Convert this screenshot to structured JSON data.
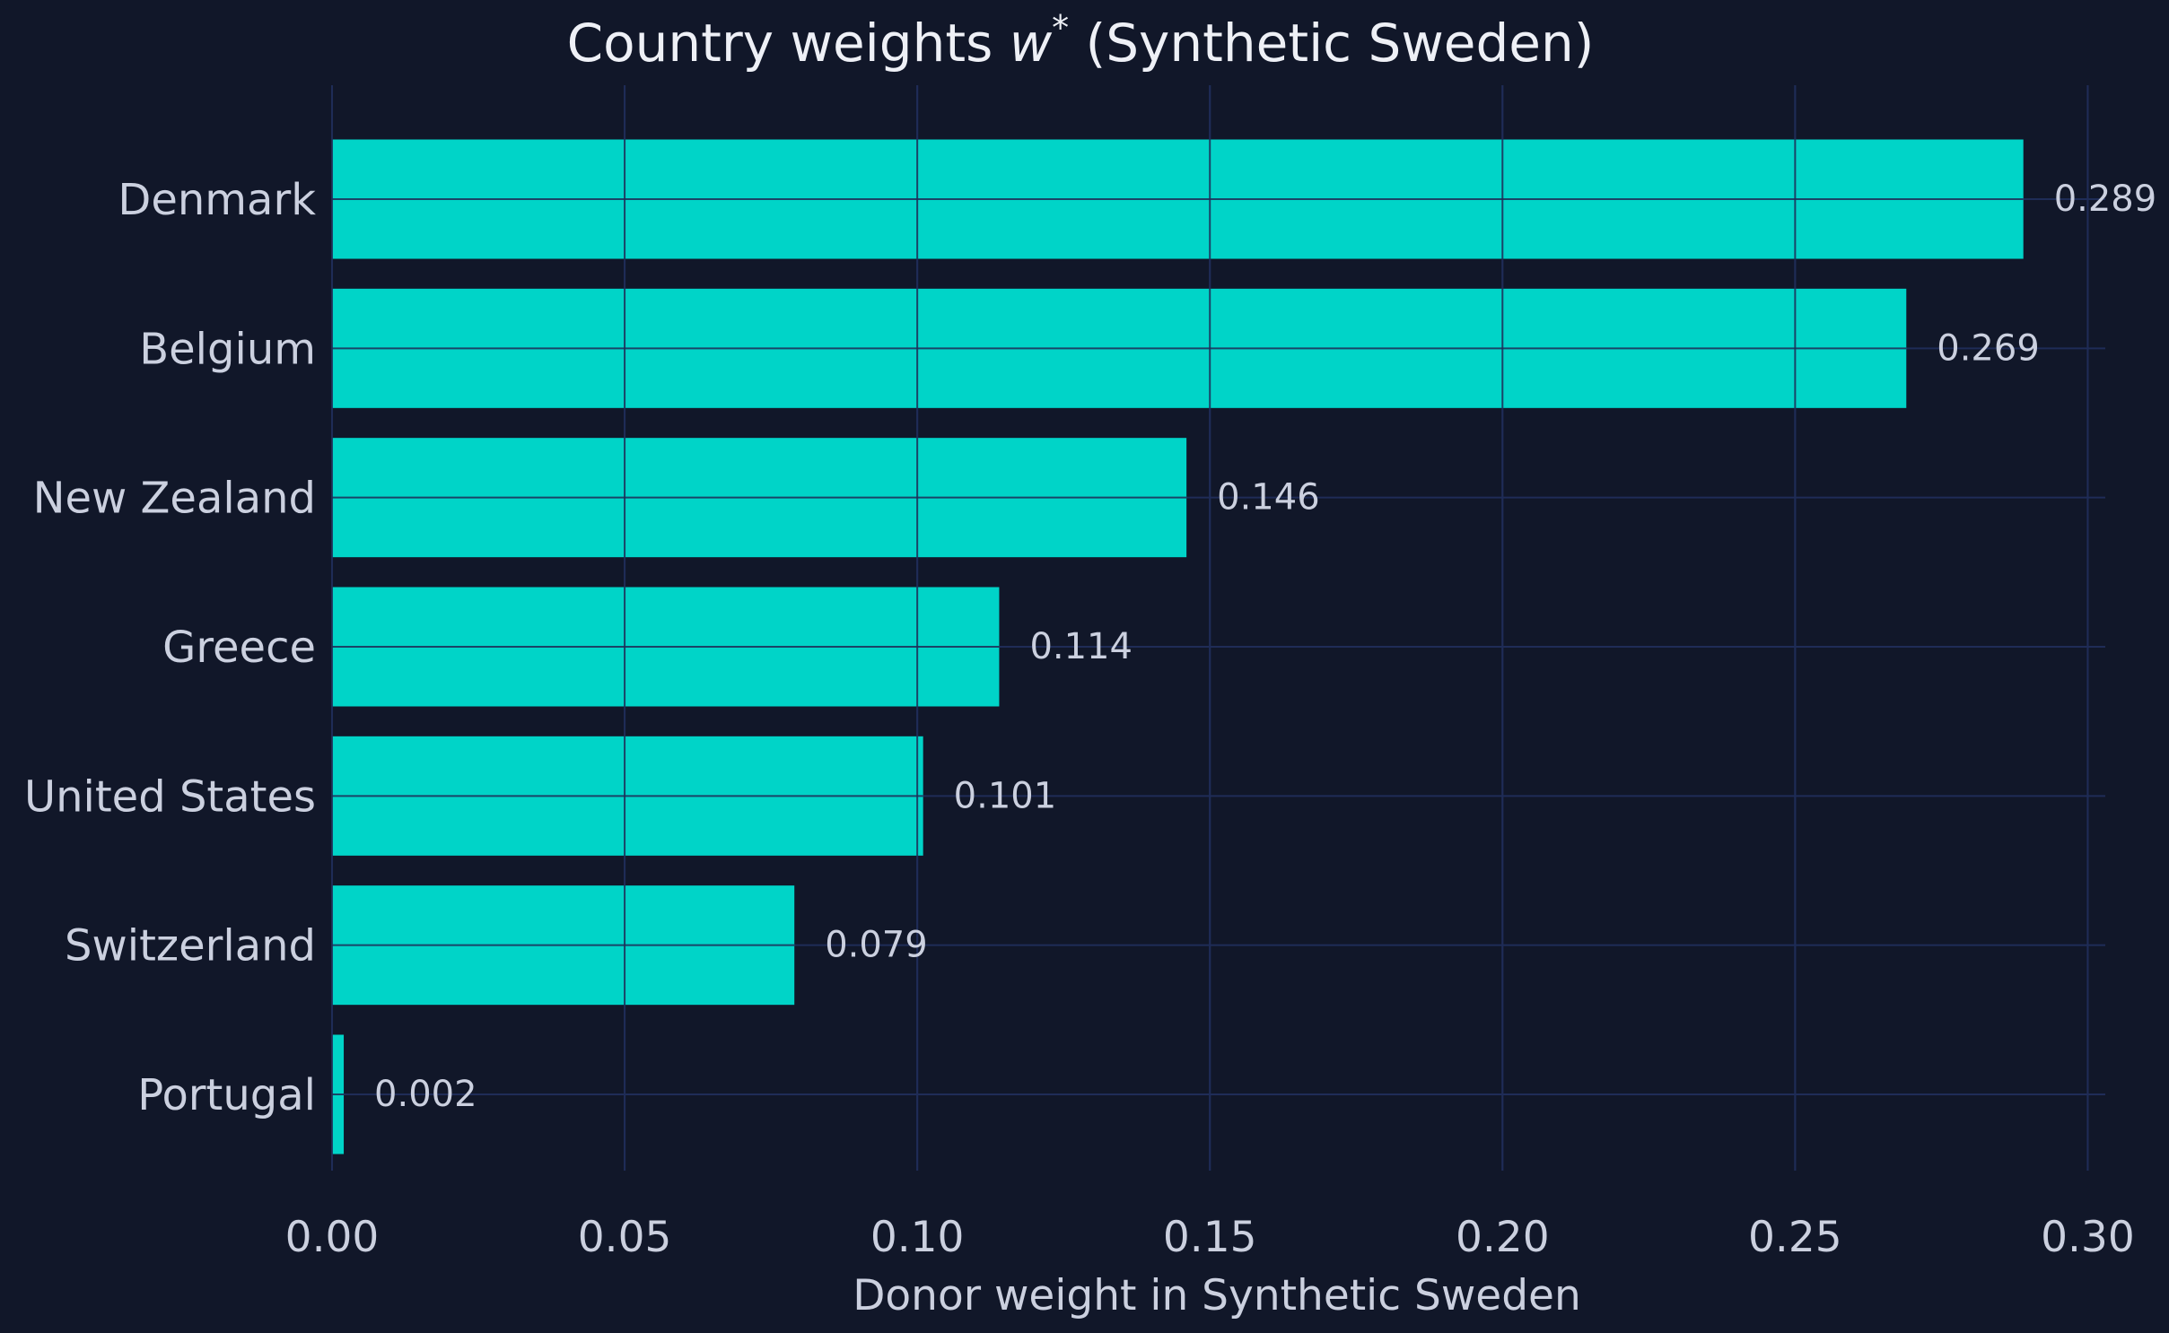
{
  "colors": {
    "background": "#111729",
    "bar": "#00d4c8",
    "grid": "#1f2c57",
    "text": "#cbd0df",
    "title": "#eef0f6"
  },
  "chart_data": {
    "type": "bar",
    "orientation": "horizontal",
    "title_main": "Country weights ",
    "title_math": "w",
    "title_sup": "*",
    "title_tail": " (Synthetic Sweden)",
    "xlabel": "Donor weight in Synthetic Sweden",
    "ylabel": "",
    "categories": [
      "Denmark",
      "Belgium",
      "New Zealand",
      "Greece",
      "United States",
      "Switzerland",
      "Portugal"
    ],
    "values": [
      0.289,
      0.269,
      0.146,
      0.114,
      0.101,
      0.079,
      0.002
    ],
    "value_labels": [
      "0.289",
      "0.269",
      "0.146",
      "0.114",
      "0.101",
      "0.079",
      "0.002"
    ],
    "xticks": [
      0.0,
      0.05,
      0.1,
      0.15,
      0.2,
      0.25,
      0.3
    ],
    "xtick_labels": [
      "0.00",
      "0.05",
      "0.10",
      "0.15",
      "0.20",
      "0.25",
      "0.30"
    ],
    "xlim": [
      0,
      0.303
    ],
    "grid": true,
    "legend": "none"
  }
}
